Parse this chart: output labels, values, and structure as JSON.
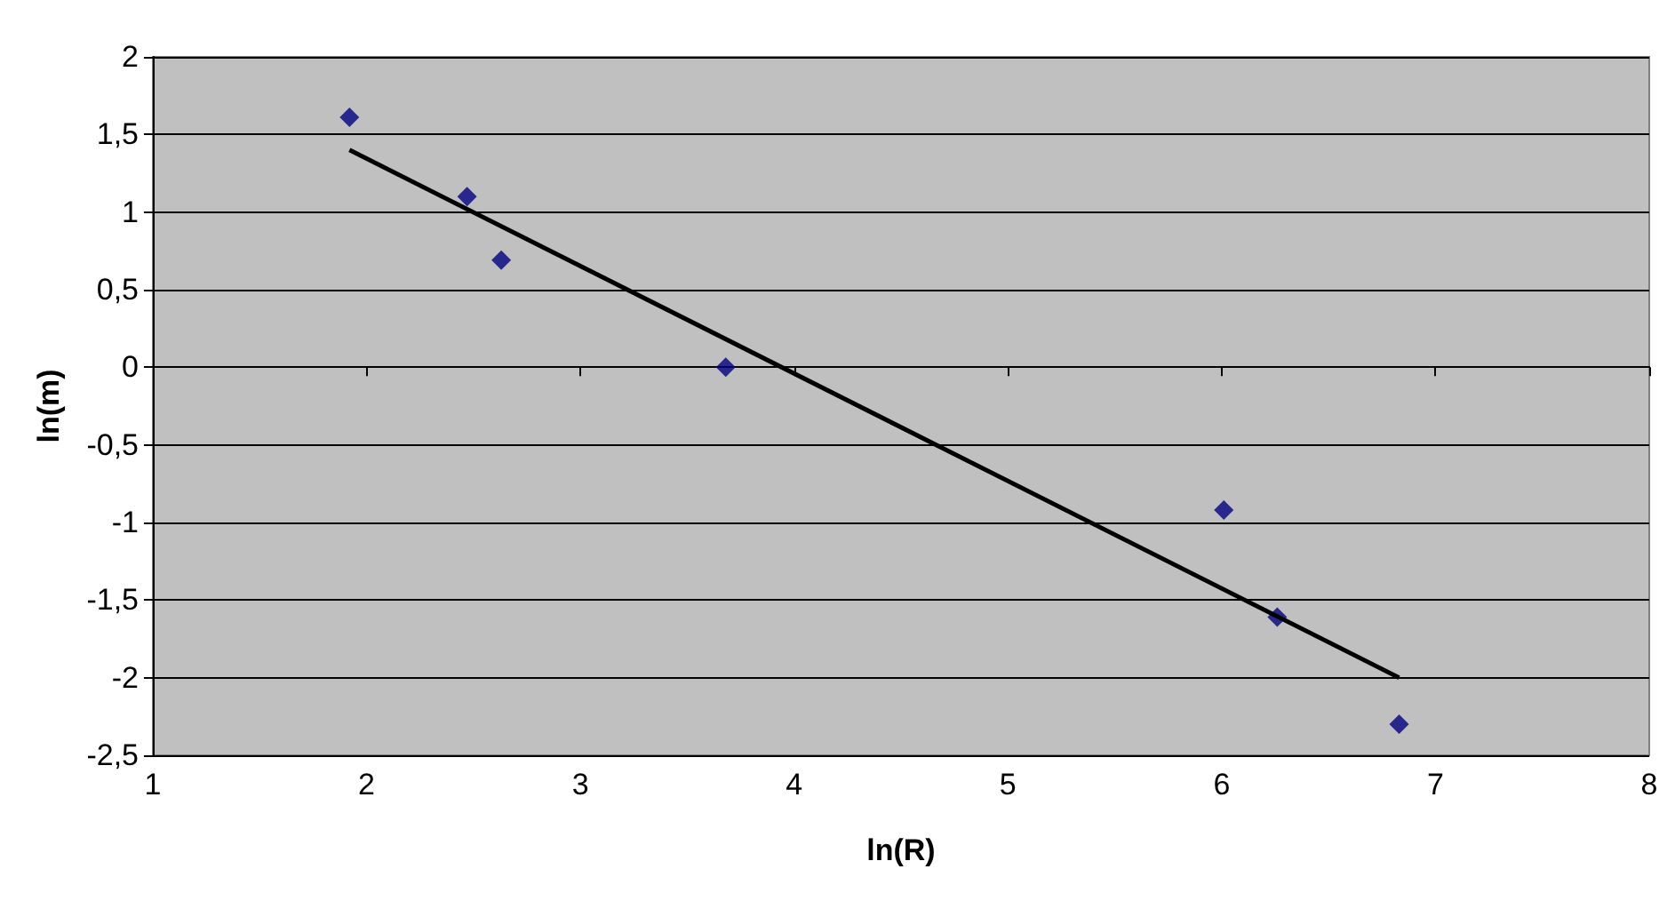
{
  "chart_data": {
    "type": "scatter",
    "xlabel": "ln(R)",
    "ylabel": "ln(m)",
    "x": [
      1.92,
      2.47,
      2.63,
      3.68,
      6.01,
      6.26,
      6.83
    ],
    "series": [
      {
        "color": "#000080",
        "values": [
          1.61,
          1.1,
          0.69,
          0,
          -0.92,
          -1.61,
          -2.3
        ]
      },
      {
        "type": "line",
        "color": "#000000",
        "x": [
          1.92,
          6.83
        ],
        "values": [
          1.4,
          -2.0
        ],
        "marker": "none"
      }
    ],
    "xlim": [
      1,
      8
    ],
    "xticks": [
      1,
      2,
      3,
      4,
      5,
      6,
      7,
      8
    ],
    "ylim": [
      -2.5,
      2
    ],
    "yticks": [
      {
        "value": -2.5,
        "label": "-2,5"
      },
      {
        "value": -2,
        "label": "-2"
      },
      {
        "value": -1.5,
        "label": "-1,5"
      },
      {
        "value": -1,
        "label": "-1"
      },
      {
        "value": -0.5,
        "label": "-0,5"
      },
      {
        "value": 0,
        "label": "0"
      },
      {
        "value": 0.5,
        "label": "0,5"
      },
      {
        "value": 1,
        "label": "1"
      },
      {
        "value": 1.5,
        "label": "1,5"
      },
      {
        "value": 2,
        "label": "2"
      }
    ],
    "grid": "y",
    "marker": "diamond"
  }
}
